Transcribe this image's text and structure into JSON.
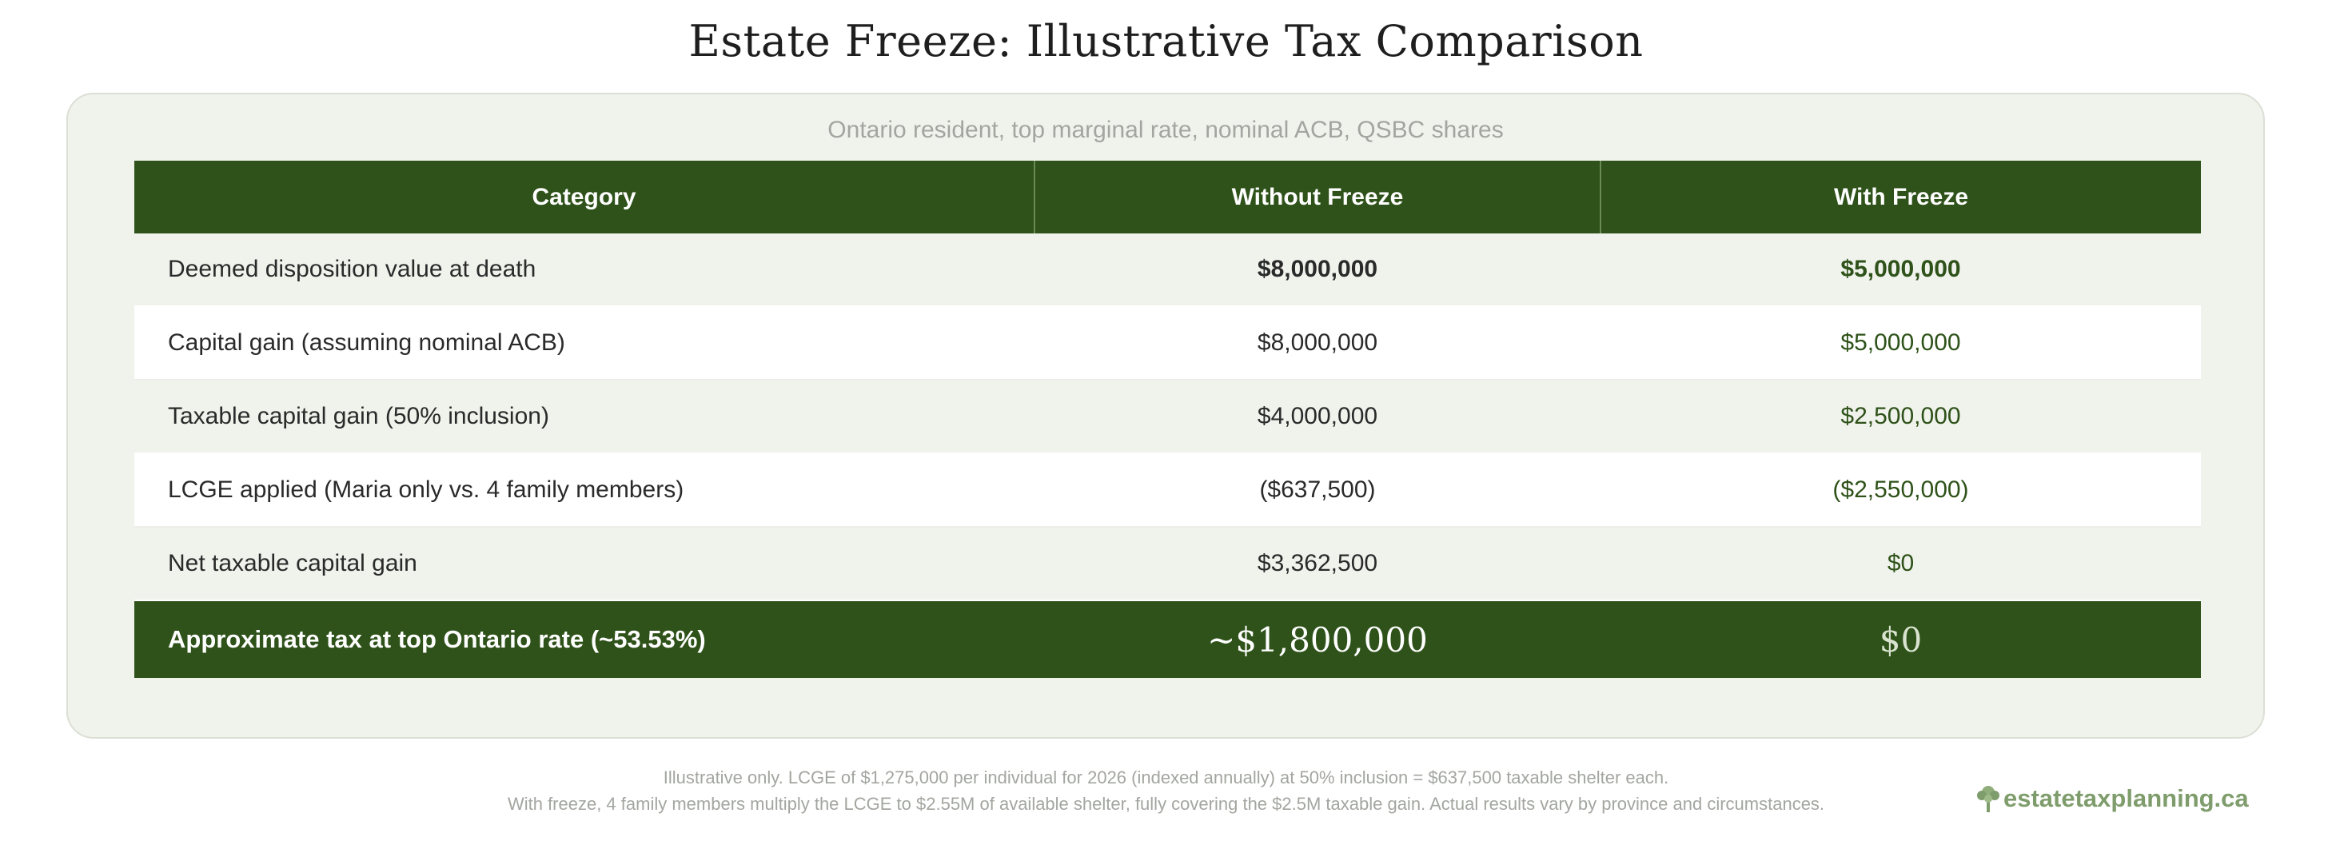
{
  "title": "Estate Freeze: Illustrative Tax Comparison",
  "subtitle": "Ontario resident, top marginal rate, nominal ACB, QSBC shares",
  "table": {
    "headers": [
      "Category",
      "Without Freeze",
      "With Freeze"
    ],
    "rows": [
      {
        "label": "Deemed disposition value at death",
        "without": "$8,000,000",
        "with": "$5,000,000"
      },
      {
        "label": "Capital gain (assuming nominal ACB)",
        "without": "$8,000,000",
        "with": "$5,000,000"
      },
      {
        "label": "Taxable capital gain (50% inclusion)",
        "without": "$4,000,000",
        "with": "$2,500,000"
      },
      {
        "label": "LCGE applied (Maria only vs. 4 family members)",
        "without": "($637,500)",
        "with": "($2,550,000)"
      },
      {
        "label": "Net taxable capital gain",
        "without": "$3,362,500",
        "with": "$0"
      }
    ],
    "total": {
      "label": "Approximate tax at top Ontario rate (~53.53%)",
      "without": "~$1,800,000",
      "with": "$0"
    }
  },
  "footnotes": [
    "Illustrative only. LCGE of $1,275,000 per individual for 2026 (indexed annually) at 50% inclusion = $637,500 taxable shelter each.",
    "With freeze, 4 family members multiply the LCGE to $2.55M of available shelter, fully covering the $2.5M taxable gain. Actual results vary by province and circumstances."
  ],
  "brand": {
    "text": "estatetaxplanning.ca",
    "icon": "tree-icon",
    "color": "#7f9d6c"
  },
  "colors": {
    "header": "#2e5219",
    "accent": "#2e5219",
    "card": "#f0f2ec"
  }
}
